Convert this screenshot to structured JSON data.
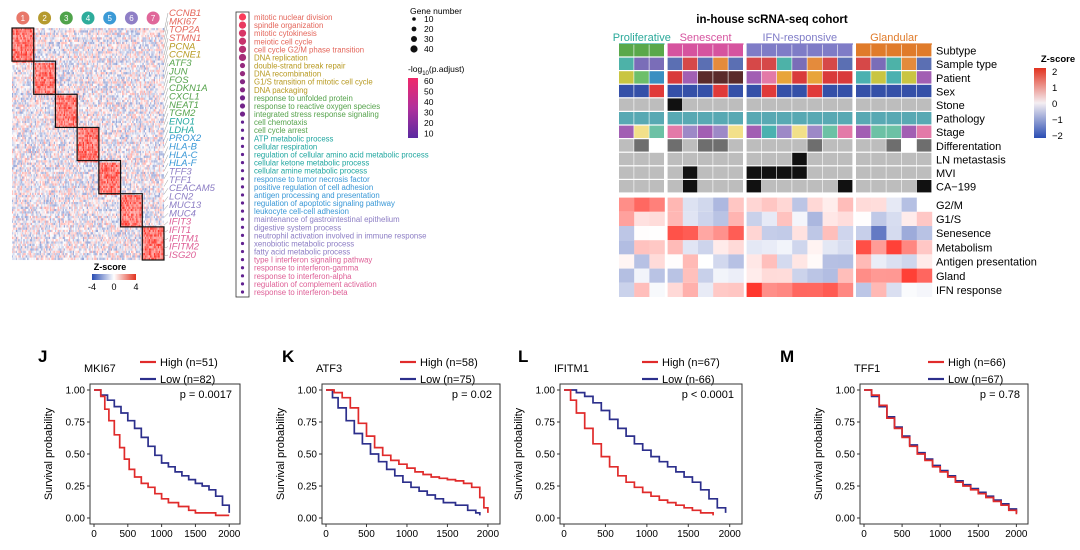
{
  "heatmap_left": {
    "cluster_labels": [
      "1",
      "2",
      "3",
      "4",
      "5",
      "6",
      "7"
    ],
    "cluster_colors": [
      "#e8786a",
      "#b59a2e",
      "#4fa34b",
      "#2eac9b",
      "#3b9ad6",
      "#8f7fc6",
      "#e0679a"
    ],
    "genes": [
      {
        "name": "CCNB1",
        "color": "#e4665b"
      },
      {
        "name": "MKI67",
        "color": "#e4665b"
      },
      {
        "name": "TOP2A",
        "color": "#e4665b"
      },
      {
        "name": "STMN1",
        "color": "#e4665b"
      },
      {
        "name": "PCNA",
        "color": "#b89a22"
      },
      {
        "name": "CCNE1",
        "color": "#b89a22"
      },
      {
        "name": "ATF3",
        "color": "#56a34c"
      },
      {
        "name": "JUN",
        "color": "#56a34c"
      },
      {
        "name": "FOS",
        "color": "#56a34c"
      },
      {
        "name": "CDKN1A",
        "color": "#56a34c"
      },
      {
        "name": "CXCL1",
        "color": "#56a34c"
      },
      {
        "name": "NEAT1",
        "color": "#56a34c"
      },
      {
        "name": "TGM2",
        "color": "#56a34c"
      },
      {
        "name": "ENO1",
        "color": "#21a7a0"
      },
      {
        "name": "LDHA",
        "color": "#21a7a0"
      },
      {
        "name": "PROX2",
        "color": "#3897d6"
      },
      {
        "name": "HLA-B",
        "color": "#3897d6"
      },
      {
        "name": "HLA-C",
        "color": "#3897d6"
      },
      {
        "name": "HLA-F",
        "color": "#3897d6"
      },
      {
        "name": "TFF3",
        "color": "#8c7dc4"
      },
      {
        "name": "TFF1",
        "color": "#8c7dc4"
      },
      {
        "name": "CEACAM5",
        "color": "#8c7dc4"
      },
      {
        "name": "LCN2",
        "color": "#8c7dc4"
      },
      {
        "name": "MUC13",
        "color": "#8c7dc4"
      },
      {
        "name": "MUC4",
        "color": "#8c7dc4"
      },
      {
        "name": "IFIT3",
        "color": "#de5f96"
      },
      {
        "name": "IFIT1",
        "color": "#de5f96"
      },
      {
        "name": "IFITM1",
        "color": "#de5f96"
      },
      {
        "name": "IFITM2",
        "color": "#de5f96"
      },
      {
        "name": "ISG20",
        "color": "#de5f96"
      }
    ],
    "legend_title": "Z-score",
    "legend_ticks": [
      "-4",
      "0",
      "4"
    ]
  },
  "go_terms": {
    "items": [
      {
        "text": "mitotic nuclear division",
        "color": "#e4665b"
      },
      {
        "text": "spindle organization",
        "color": "#e4665b"
      },
      {
        "text": "mitotic cytokinesis",
        "color": "#e4665b"
      },
      {
        "text": "meiotic cell cycle",
        "color": "#e4665b"
      },
      {
        "text": "cell cycle G2/M phase transition",
        "color": "#e4665b"
      },
      {
        "text": "DNA replication",
        "color": "#b89a22"
      },
      {
        "text": "double-strand break repair",
        "color": "#b89a22"
      },
      {
        "text": "DNA recombination",
        "color": "#b89a22"
      },
      {
        "text": "G1/S transition of mitotic cell cycle",
        "color": "#b89a22"
      },
      {
        "text": "DNA packaging",
        "color": "#b89a22"
      },
      {
        "text": "response to unfolded protein",
        "color": "#56a34c"
      },
      {
        "text": "response to reactive oxygen species",
        "color": "#56a34c"
      },
      {
        "text": "integrated stress response signaling",
        "color": "#56a34c"
      },
      {
        "text": "cell chemotaxis",
        "color": "#56a34c"
      },
      {
        "text": "cell cycle arrest",
        "color": "#56a34c"
      },
      {
        "text": "ATP metabolic process",
        "color": "#21a7a0"
      },
      {
        "text": "cellular respiration",
        "color": "#21a7a0"
      },
      {
        "text": "regulation of cellular amino acid metabolic process",
        "color": "#21a7a0"
      },
      {
        "text": "cellular ketone metabolic process",
        "color": "#21a7a0"
      },
      {
        "text": "cellular amine metabolic process",
        "color": "#21a7a0"
      },
      {
        "text": "response to tumor necrosis factor",
        "color": "#3897d6"
      },
      {
        "text": "positive regulation of cell adhesion",
        "color": "#3897d6"
      },
      {
        "text": "antigen processing and presentation",
        "color": "#3897d6"
      },
      {
        "text": "regulation of apoptotic signaling pathway",
        "color": "#3897d6"
      },
      {
        "text": "leukocyte cell-cell adhesion",
        "color": "#3897d6"
      },
      {
        "text": "maintenance of gastrointestinal epithelium",
        "color": "#8c7dc4"
      },
      {
        "text": "digestive system process",
        "color": "#8c7dc4"
      },
      {
        "text": "neutrophil activation involved in immune response",
        "color": "#8c7dc4"
      },
      {
        "text": "xenobiotic metabolic process",
        "color": "#8c7dc4"
      },
      {
        "text": "fatty acid metabolic process",
        "color": "#8c7dc4"
      },
      {
        "text": "type I interferon signaling pathway",
        "color": "#de5f96"
      },
      {
        "text": "response to interferon-gamma",
        "color": "#de5f96"
      },
      {
        "text": "response to interferon-alpha",
        "color": "#de5f96"
      },
      {
        "text": "regulation of complement activation",
        "color": "#de5f96"
      },
      {
        "text": "response to interferon-beta",
        "color": "#de5f96"
      }
    ],
    "dot_sizes": [
      2,
      2,
      2,
      2,
      2,
      2,
      1,
      1,
      1,
      1,
      1,
      1,
      1,
      0,
      0,
      0,
      0,
      0,
      0,
      0,
      0,
      0,
      0,
      0,
      0,
      0,
      0,
      0,
      0,
      0,
      0,
      0,
      0,
      0,
      0
    ],
    "dot_color_levels": [
      60,
      55,
      50,
      45,
      40,
      35,
      30,
      30,
      25,
      25,
      20,
      20,
      20,
      15,
      15,
      15,
      15,
      15,
      15,
      15,
      15,
      15,
      15,
      15,
      15,
      15,
      15,
      15,
      15,
      15,
      15,
      15,
      15,
      15,
      15
    ]
  },
  "dot_legend": {
    "size_title": "Gene number",
    "size_values": [
      "10",
      "20",
      "30",
      "40"
    ],
    "color_title_prefix": "-log",
    "color_title_sub": "10",
    "color_title_suffix": "(p.adjust)",
    "color_values": [
      "60",
      "50",
      "40",
      "30",
      "20",
      "10"
    ]
  },
  "cohort": {
    "title": "in-house scRNA-seq cohort",
    "groups": [
      {
        "name": "Proliferative",
        "color": "#2aa99a",
        "cols": 3
      },
      {
        "name": "Senescent",
        "color": "#d6539f",
        "cols": 5
      },
      {
        "name": "IFN-responsive",
        "color": "#7f7cc7",
        "cols": 7
      },
      {
        "name": "Glandular",
        "color": "#e07b2a",
        "cols": 5
      }
    ],
    "annotation_rows": [
      "Subtype",
      "Sample  type",
      "Patient",
      "Sex",
      "Stone",
      "Pathology",
      "Stage",
      "Differentation",
      "LN metastasis",
      "MVI",
      "CA−199"
    ],
    "score_rows": [
      "G2/M",
      "G1/S",
      "Senesence",
      "Metabolism",
      "Antigen presentation",
      "Gland",
      "IFN response"
    ],
    "legend_title": "Z-score",
    "legend_ticks": [
      "2",
      "1",
      "0",
      "−1",
      "−2"
    ]
  },
  "km_plots": [
    {
      "letter": "J",
      "gene": "MKI67",
      "high_label": "High (n=51)",
      "low_label": "Low (n=82)",
      "pval": "p = 0.0017",
      "high": [
        [
          0,
          1
        ],
        [
          100,
          0.95
        ],
        [
          160,
          0.85
        ],
        [
          220,
          0.76
        ],
        [
          300,
          0.65
        ],
        [
          380,
          0.55
        ],
        [
          450,
          0.46
        ],
        [
          520,
          0.38
        ],
        [
          600,
          0.32
        ],
        [
          700,
          0.27
        ],
        [
          800,
          0.24
        ],
        [
          900,
          0.19
        ],
        [
          1000,
          0.15
        ],
        [
          1100,
          0.12
        ],
        [
          1250,
          0.09
        ],
        [
          1400,
          0.06
        ],
        [
          1500,
          0.04
        ],
        [
          1800,
          0.02
        ],
        [
          2000,
          0.02
        ]
      ],
      "low": [
        [
          0,
          1
        ],
        [
          100,
          0.96
        ],
        [
          200,
          0.92
        ],
        [
          300,
          0.87
        ],
        [
          400,
          0.82
        ],
        [
          500,
          0.76
        ],
        [
          600,
          0.7
        ],
        [
          700,
          0.63
        ],
        [
          800,
          0.56
        ],
        [
          900,
          0.49
        ],
        [
          1000,
          0.43
        ],
        [
          1100,
          0.4
        ],
        [
          1200,
          0.36
        ],
        [
          1300,
          0.33
        ],
        [
          1400,
          0.3
        ],
        [
          1500,
          0.27
        ],
        [
          1600,
          0.25
        ],
        [
          1700,
          0.22
        ],
        [
          1800,
          0.17
        ],
        [
          1900,
          0.1
        ],
        [
          2000,
          0.04
        ]
      ]
    },
    {
      "letter": "K",
      "gene": "ATF3",
      "high_label": "High (n=58)",
      "low_label": "Low (n=75)",
      "pval": "p = 0.02",
      "high": [
        [
          0,
          1
        ],
        [
          100,
          0.98
        ],
        [
          200,
          0.94
        ],
        [
          300,
          0.86
        ],
        [
          400,
          0.74
        ],
        [
          500,
          0.64
        ],
        [
          600,
          0.55
        ],
        [
          700,
          0.49
        ],
        [
          800,
          0.45
        ],
        [
          900,
          0.42
        ],
        [
          1000,
          0.39
        ],
        [
          1100,
          0.36
        ],
        [
          1200,
          0.34
        ],
        [
          1300,
          0.32
        ],
        [
          1400,
          0.31
        ],
        [
          1500,
          0.3
        ],
        [
          1600,
          0.29
        ],
        [
          1700,
          0.27
        ],
        [
          1800,
          0.24
        ],
        [
          1900,
          0.16
        ],
        [
          1950,
          0.08
        ],
        [
          2000,
          0.04
        ]
      ],
      "low": [
        [
          0,
          1
        ],
        [
          80,
          0.94
        ],
        [
          150,
          0.86
        ],
        [
          250,
          0.76
        ],
        [
          350,
          0.66
        ],
        [
          450,
          0.58
        ],
        [
          550,
          0.5
        ],
        [
          650,
          0.44
        ],
        [
          750,
          0.38
        ],
        [
          850,
          0.33
        ],
        [
          950,
          0.28
        ],
        [
          1050,
          0.24
        ],
        [
          1150,
          0.21
        ],
        [
          1250,
          0.18
        ],
        [
          1350,
          0.15
        ],
        [
          1450,
          0.12
        ],
        [
          1600,
          0.1
        ],
        [
          1750,
          0.06
        ],
        [
          1850,
          0.04
        ],
        [
          1900,
          0.02
        ]
      ]
    },
    {
      "letter": "L",
      "gene": "IFITM1",
      "high_label": "High (n=67)",
      "low_label": "Low (n-66)",
      "pval": "p < 0.0001",
      "high": [
        [
          0,
          1
        ],
        [
          80,
          0.92
        ],
        [
          150,
          0.82
        ],
        [
          250,
          0.7
        ],
        [
          350,
          0.58
        ],
        [
          450,
          0.48
        ],
        [
          550,
          0.4
        ],
        [
          650,
          0.33
        ],
        [
          750,
          0.28
        ],
        [
          850,
          0.24
        ],
        [
          950,
          0.2
        ],
        [
          1050,
          0.17
        ],
        [
          1150,
          0.14
        ],
        [
          1250,
          0.12
        ],
        [
          1350,
          0.1
        ],
        [
          1450,
          0.08
        ],
        [
          1550,
          0.06
        ],
        [
          1650,
          0.04
        ],
        [
          1800,
          0.02
        ]
      ],
      "low": [
        [
          0,
          1
        ],
        [
          150,
          0.98
        ],
        [
          250,
          0.95
        ],
        [
          350,
          0.9
        ],
        [
          450,
          0.84
        ],
        [
          550,
          0.77
        ],
        [
          650,
          0.7
        ],
        [
          750,
          0.64
        ],
        [
          850,
          0.58
        ],
        [
          950,
          0.53
        ],
        [
          1050,
          0.48
        ],
        [
          1150,
          0.44
        ],
        [
          1250,
          0.4
        ],
        [
          1350,
          0.36
        ],
        [
          1450,
          0.32
        ],
        [
          1550,
          0.28
        ],
        [
          1650,
          0.22
        ],
        [
          1750,
          0.15
        ],
        [
          1850,
          0.08
        ],
        [
          1950,
          0.04
        ]
      ]
    },
    {
      "letter": "M",
      "gene": "TFF1",
      "high_label": "High (n=66)",
      "low_label": "Low (n=67)",
      "pval": "p = 0.78",
      "high": [
        [
          0,
          1
        ],
        [
          100,
          0.96
        ],
        [
          200,
          0.88
        ],
        [
          300,
          0.78
        ],
        [
          400,
          0.7
        ],
        [
          500,
          0.63
        ],
        [
          600,
          0.56
        ],
        [
          700,
          0.5
        ],
        [
          800,
          0.45
        ],
        [
          900,
          0.4
        ],
        [
          1000,
          0.36
        ],
        [
          1100,
          0.32
        ],
        [
          1200,
          0.28
        ],
        [
          1300,
          0.25
        ],
        [
          1400,
          0.22
        ],
        [
          1500,
          0.19
        ],
        [
          1600,
          0.16
        ],
        [
          1700,
          0.13
        ],
        [
          1800,
          0.1
        ],
        [
          1900,
          0.06
        ],
        [
          2000,
          0.03
        ]
      ],
      "low": [
        [
          0,
          1
        ],
        [
          100,
          0.95
        ],
        [
          200,
          0.87
        ],
        [
          300,
          0.79
        ],
        [
          400,
          0.71
        ],
        [
          500,
          0.64
        ],
        [
          600,
          0.57
        ],
        [
          700,
          0.51
        ],
        [
          800,
          0.46
        ],
        [
          900,
          0.41
        ],
        [
          1000,
          0.37
        ],
        [
          1100,
          0.33
        ],
        [
          1200,
          0.29
        ],
        [
          1300,
          0.26
        ],
        [
          1400,
          0.23
        ],
        [
          1500,
          0.2
        ],
        [
          1600,
          0.17
        ],
        [
          1700,
          0.14
        ],
        [
          1800,
          0.11
        ],
        [
          1900,
          0.07
        ],
        [
          2000,
          0.04
        ]
      ]
    }
  ],
  "km_axes": {
    "ylabel": "Survival probability",
    "yticks": [
      "0.00",
      "0.25",
      "0.50",
      "0.75",
      "1.00"
    ],
    "xticks": [
      "0",
      "500",
      "1000",
      "1500",
      "2000"
    ],
    "xmax": 2100
  },
  "colors": {
    "high": "#e02b2b",
    "low": "#2c2f8c"
  }
}
